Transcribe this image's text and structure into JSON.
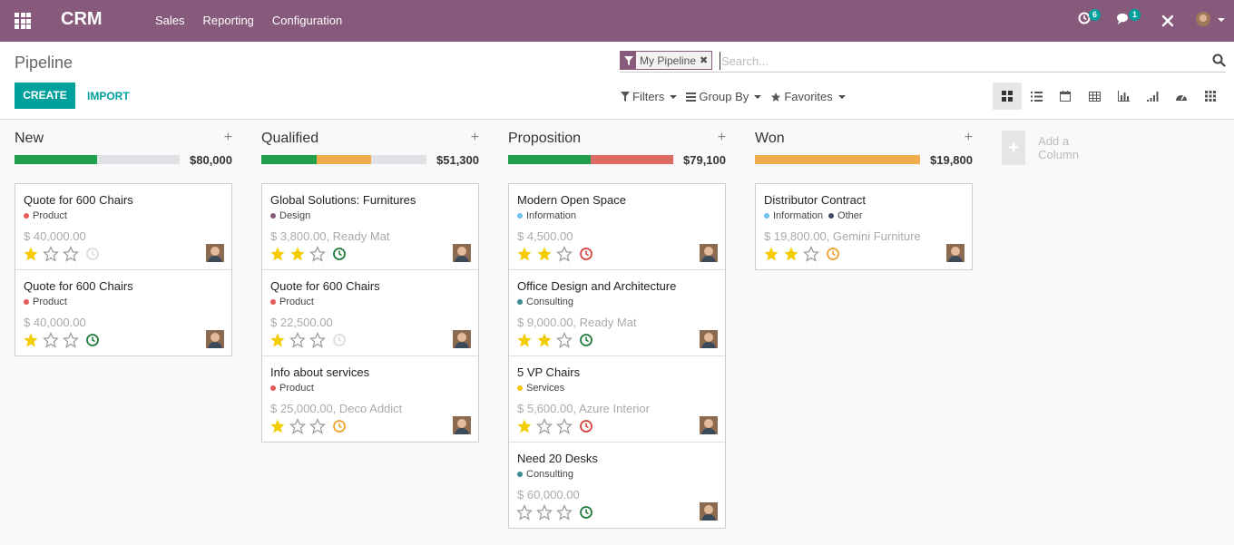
{
  "navbar": {
    "app_name": "CRM",
    "menu": [
      "Sales",
      "Reporting",
      "Configuration"
    ],
    "activity_count": "6",
    "messages_count": "1"
  },
  "control_panel": {
    "title": "Pipeline",
    "create_label": "CREATE",
    "import_label": "IMPORT",
    "search": {
      "facet": "My Pipeline",
      "placeholder": "Search..."
    },
    "filters_label": "Filters",
    "group_by_label": "Group By",
    "favorites_label": "Favorites"
  },
  "colors": {
    "brand": "#875a7b",
    "accent": "#00a09d",
    "progress_green": "#21a04c",
    "progress_orange": "#f0ad4e",
    "progress_red": "#dd6a64",
    "star": "#f3cc00"
  },
  "columns": [
    {
      "title": "New",
      "sum": "$80,000",
      "progress": [
        {
          "color": "#21a04c",
          "fraction": 0.5
        }
      ],
      "cards": [
        {
          "title": "Quote for 600 Chairs",
          "tags": [
            {
              "label": "Product",
              "color": "#e55b5b"
            }
          ],
          "amount": "$ 40,000.00",
          "stars": 1,
          "activity": "none"
        },
        {
          "title": "Quote for 600 Chairs",
          "tags": [
            {
              "label": "Product",
              "color": "#e55b5b"
            }
          ],
          "amount": "$ 40,000.00",
          "stars": 1,
          "activity": "planned"
        }
      ]
    },
    {
      "title": "Qualified",
      "sum": "$51,300",
      "progress": [
        {
          "color": "#21a04c",
          "fraction": 0.333
        },
        {
          "color": "#f0ad4e",
          "fraction": 0.334
        }
      ],
      "cards": [
        {
          "title": "Global Solutions: Furnitures",
          "tags": [
            {
              "label": "Design",
              "color": "#875a7b"
            }
          ],
          "amount": "$ 3,800.00, Ready Mat",
          "stars": 2,
          "activity": "planned"
        },
        {
          "title": "Quote for 600 Chairs",
          "tags": [
            {
              "label": "Product",
              "color": "#e55b5b"
            }
          ],
          "amount": "$ 22,500.00",
          "stars": 1,
          "activity": "none"
        },
        {
          "title": "Info about services",
          "tags": [
            {
              "label": "Product",
              "color": "#e55b5b"
            }
          ],
          "amount": "$ 25,000.00, Deco Addict",
          "stars": 1,
          "activity": "today"
        }
      ]
    },
    {
      "title": "Proposition",
      "sum": "$79,100",
      "progress": [
        {
          "color": "#21a04c",
          "fraction": 0.5
        },
        {
          "color": "#dd6a64",
          "fraction": 0.5
        }
      ],
      "cards": [
        {
          "title": "Modern Open Space",
          "tags": [
            {
              "label": "Information",
              "color": "#6cc1ed"
            }
          ],
          "amount": "$ 4,500.00",
          "stars": 2,
          "activity": "overdue"
        },
        {
          "title": "Office Design and Architecture",
          "tags": [
            {
              "label": "Consulting",
              "color": "#3c8b8e"
            }
          ],
          "amount": "$ 9,000.00, Ready Mat",
          "stars": 2,
          "activity": "planned"
        },
        {
          "title": "5 VP Chairs",
          "tags": [
            {
              "label": "Services",
              "color": "#f4c609"
            }
          ],
          "amount": "$ 5,600.00, Azure Interior",
          "stars": 1,
          "activity": "overdue"
        },
        {
          "title": "Need 20 Desks",
          "tags": [
            {
              "label": "Consulting",
              "color": "#3c8b8e"
            }
          ],
          "amount": "$ 60,000.00",
          "stars": 0,
          "activity": "planned"
        }
      ]
    },
    {
      "title": "Won",
      "sum": "$19,800",
      "progress": [
        {
          "color": "#f0ad4e",
          "fraction": 1.0
        }
      ],
      "cards": [
        {
          "title": "Distributor Contract",
          "tags": [
            {
              "label": "Information",
              "color": "#6cc1ed"
            },
            {
              "label": "Other",
              "color": "#3f4b65"
            }
          ],
          "amount": "$ 19,800.00, Gemini Furniture",
          "stars": 2,
          "activity": "today"
        }
      ]
    }
  ],
  "add_column_label": "Add a Column"
}
